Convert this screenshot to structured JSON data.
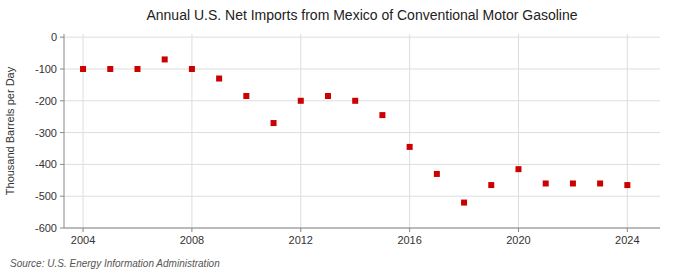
{
  "chart_data": {
    "type": "scatter",
    "title": "Annual U.S. Net Imports from Mexico of Conventional Motor Gasoline",
    "ylabel": "Thousand Barrels per Day",
    "annotations": [
      "Source: U.S. Energy Information Administration"
    ],
    "x": [
      2004,
      2005,
      2006,
      2007,
      2008,
      2009,
      2010,
      2011,
      2012,
      2013,
      2014,
      2015,
      2016,
      2017,
      2018,
      2019,
      2020,
      2021,
      2022,
      2023,
      2024
    ],
    "values": [
      -100,
      -100,
      -100,
      -70,
      -100,
      -130,
      -185,
      -270,
      -200,
      -185,
      -200,
      -245,
      -345,
      -430,
      -520,
      -465,
      -415,
      -460,
      -460,
      -460,
      -465
    ],
    "color": "#cc0000",
    "marker": "square",
    "xlim": [
      2003.3,
      2025.2
    ],
    "ylim": [
      -600,
      10
    ],
    "xticks": [
      2004,
      2008,
      2012,
      2016,
      2020,
      2024
    ],
    "yticks": [
      0,
      -100,
      -200,
      -300,
      -400,
      -500,
      -600
    ],
    "grid": true
  }
}
